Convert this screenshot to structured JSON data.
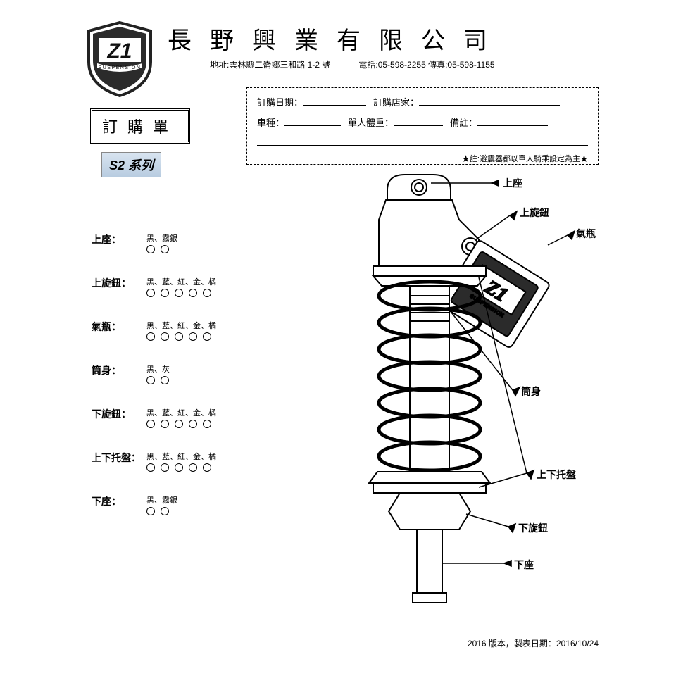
{
  "company": {
    "name": "長野興業有限公司",
    "address": "地址:雲林縣二崙鄉三和路 1-2 號",
    "phone": "電話:05-598-2255 傳真:05-598-1155"
  },
  "order_title": "訂購單",
  "series": "S2 系列",
  "logo_text": "Z1",
  "logo_sub": "SUSPENSION",
  "info": {
    "f1_label": "訂購日期：",
    "f2_label": "訂購店家：",
    "f3_label": "車種：",
    "f4_label": "單人體重：",
    "f5_label": "備註：",
    "note": "★註:避震器都以單人騎乘設定為主★"
  },
  "options": [
    {
      "label": "上座：",
      "colors": "黑、霧銀",
      "count": 2
    },
    {
      "label": "上旋鈕：",
      "colors": "黑、藍、紅、金、橘",
      "count": 5
    },
    {
      "label": "氣瓶：",
      "colors": "黑、藍、紅、金、橘",
      "count": 5
    },
    {
      "label": "筒身：",
      "colors": "黑、灰",
      "count": 2
    },
    {
      "label": "下旋鈕：",
      "colors": "黑、藍、紅、金、橘",
      "count": 5
    },
    {
      "label": "上下托盤：",
      "colors": "黑、藍、紅、金、橘",
      "count": 5
    },
    {
      "label": "下座：",
      "colors": "黑、霧銀",
      "count": 2
    }
  ],
  "callouts": {
    "top_mount": "上座",
    "top_knob": "上旋鈕",
    "reservoir": "氣瓶",
    "body": "筒身",
    "plates": "上下托盤",
    "bottom_knob": "下旋鈕",
    "bottom_mount": "下座"
  },
  "footer": "2016 版本，製表日期：2016/10/24",
  "style": {
    "circle_stroke": "#000000",
    "dash_border": "#000000",
    "series_bg_top": "#d8e4f0",
    "series_bg_bottom": "#b8cce0"
  }
}
